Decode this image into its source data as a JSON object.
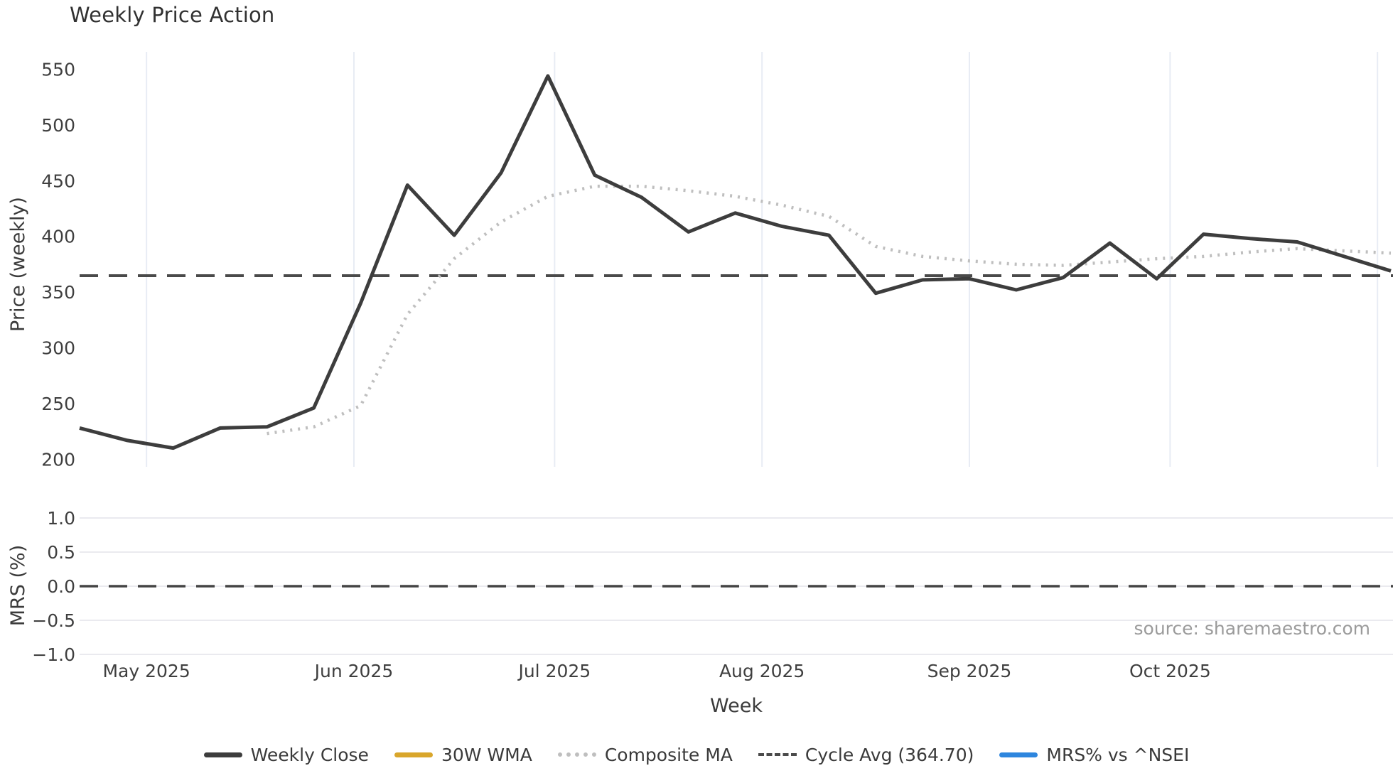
{
  "title": "Weekly Price Action",
  "source_note": "source: sharemaestro.com",
  "colors": {
    "weekly_close": "#3d3d3d",
    "wma_30w": "#d9a62b",
    "composite_ma": "#bfbfbf",
    "cycle_avg": "#4a4a4a",
    "mrs_line": "#2e86de",
    "grid_vertical": "#e8ecf4",
    "grid_horizontal": "#eaeaef",
    "tick_text": "#3f3f3f",
    "axis_text": "#3b3b3b"
  },
  "chart_data": [
    {
      "type": "line",
      "title": "Weekly Price Action",
      "xlabel": "Week",
      "ylabel": "Price (weekly)",
      "grid": "vertical-only",
      "ylim": [
        190,
        568
      ],
      "y_ticks": [
        {
          "value": 550,
          "label": "550"
        },
        {
          "value": 500,
          "label": "500"
        },
        {
          "value": 450,
          "label": "450"
        },
        {
          "value": 400,
          "label": "400"
        },
        {
          "value": 350,
          "label": "350"
        },
        {
          "value": 300,
          "label": "300"
        },
        {
          "value": 250,
          "label": "250"
        },
        {
          "value": 200,
          "label": "200"
        }
      ],
      "x_ticks": [
        {
          "date": "2025-05-01",
          "label": "May 2025"
        },
        {
          "date": "2025-06-01",
          "label": "Jun 2025"
        },
        {
          "date": "2025-07-01",
          "label": "Jul 2025"
        },
        {
          "date": "2025-08-01",
          "label": "Aug 2025"
        },
        {
          "date": "2025-09-01",
          "label": "Sep 2025"
        },
        {
          "date": "2025-10-01",
          "label": "Oct 2025"
        },
        {
          "date": "2025-11-01",
          "label": ""
        }
      ],
      "weeks": [
        "2025-04-21",
        "2025-04-28",
        "2025-05-05",
        "2025-05-12",
        "2025-05-19",
        "2025-05-26",
        "2025-06-02",
        "2025-06-09",
        "2025-06-16",
        "2025-06-23",
        "2025-06-30",
        "2025-07-07",
        "2025-07-14",
        "2025-07-21",
        "2025-07-28",
        "2025-08-04",
        "2025-08-11",
        "2025-08-18",
        "2025-08-25",
        "2025-09-01",
        "2025-09-08",
        "2025-09-15",
        "2025-09-22",
        "2025-09-29",
        "2025-10-06",
        "2025-10-13",
        "2025-10-20",
        "2025-10-27",
        "2025-11-03"
      ],
      "series": [
        {
          "name": "Weekly Close",
          "style": "solid",
          "color": "#3d3d3d",
          "values": [
            228,
            217,
            210,
            228,
            229,
            246,
            340,
            446,
            401,
            457,
            544,
            455,
            435,
            404,
            421,
            409,
            401,
            349,
            361,
            362,
            352,
            363,
            394,
            362,
            402,
            398,
            395,
            382,
            369
          ]
        },
        {
          "name": "Composite MA",
          "style": "dotted",
          "color": "#bfbfbf",
          "values": [
            null,
            null,
            null,
            null,
            223,
            229,
            248,
            330,
            380,
            413,
            436,
            445,
            445,
            441,
            436,
            428,
            418,
            391,
            382,
            378,
            375,
            374,
            377,
            380,
            382,
            386,
            389,
            387,
            385
          ]
        },
        {
          "name": "30W WMA",
          "style": "solid",
          "color": "#d9a62b",
          "values": []
        }
      ],
      "hline": {
        "name": "Cycle Avg",
        "value": 364.7,
        "style": "dashed",
        "color": "#4a4a4a"
      },
      "legend_position": "bottom"
    },
    {
      "type": "line",
      "xlabel": "Week",
      "ylabel": "MRS (%)",
      "grid": "horizontal-only",
      "ylim": [
        -1.15,
        1.15
      ],
      "y_ticks": [
        {
          "value": 1.0,
          "label": "1.0"
        },
        {
          "value": 0.5,
          "label": "0.5"
        },
        {
          "value": 0.0,
          "label": "0.0"
        },
        {
          "value": -0.5,
          "label": "−0.5"
        },
        {
          "value": -1.0,
          "label": "−1.0"
        }
      ],
      "series": [
        {
          "name": "MRS% vs ^NSEI",
          "style": "solid",
          "color": "#2e86de",
          "values": []
        }
      ],
      "hline": {
        "name": "zero-line",
        "value": 0.0,
        "style": "dashed",
        "color": "#454545"
      }
    }
  ],
  "legend": [
    {
      "label": "Weekly Close",
      "style": "solid",
      "color": "#3d3d3d"
    },
    {
      "label": "30W WMA",
      "style": "solid",
      "color": "#d9a62b"
    },
    {
      "label": "Composite MA",
      "style": "dotted",
      "color": "#bfbfbf"
    },
    {
      "label": "Cycle Avg (364.70)",
      "style": "dashed",
      "color": "#4a4a4a"
    },
    {
      "label": "MRS% vs ^NSEI",
      "style": "solid",
      "color": "#2e86de"
    }
  ]
}
